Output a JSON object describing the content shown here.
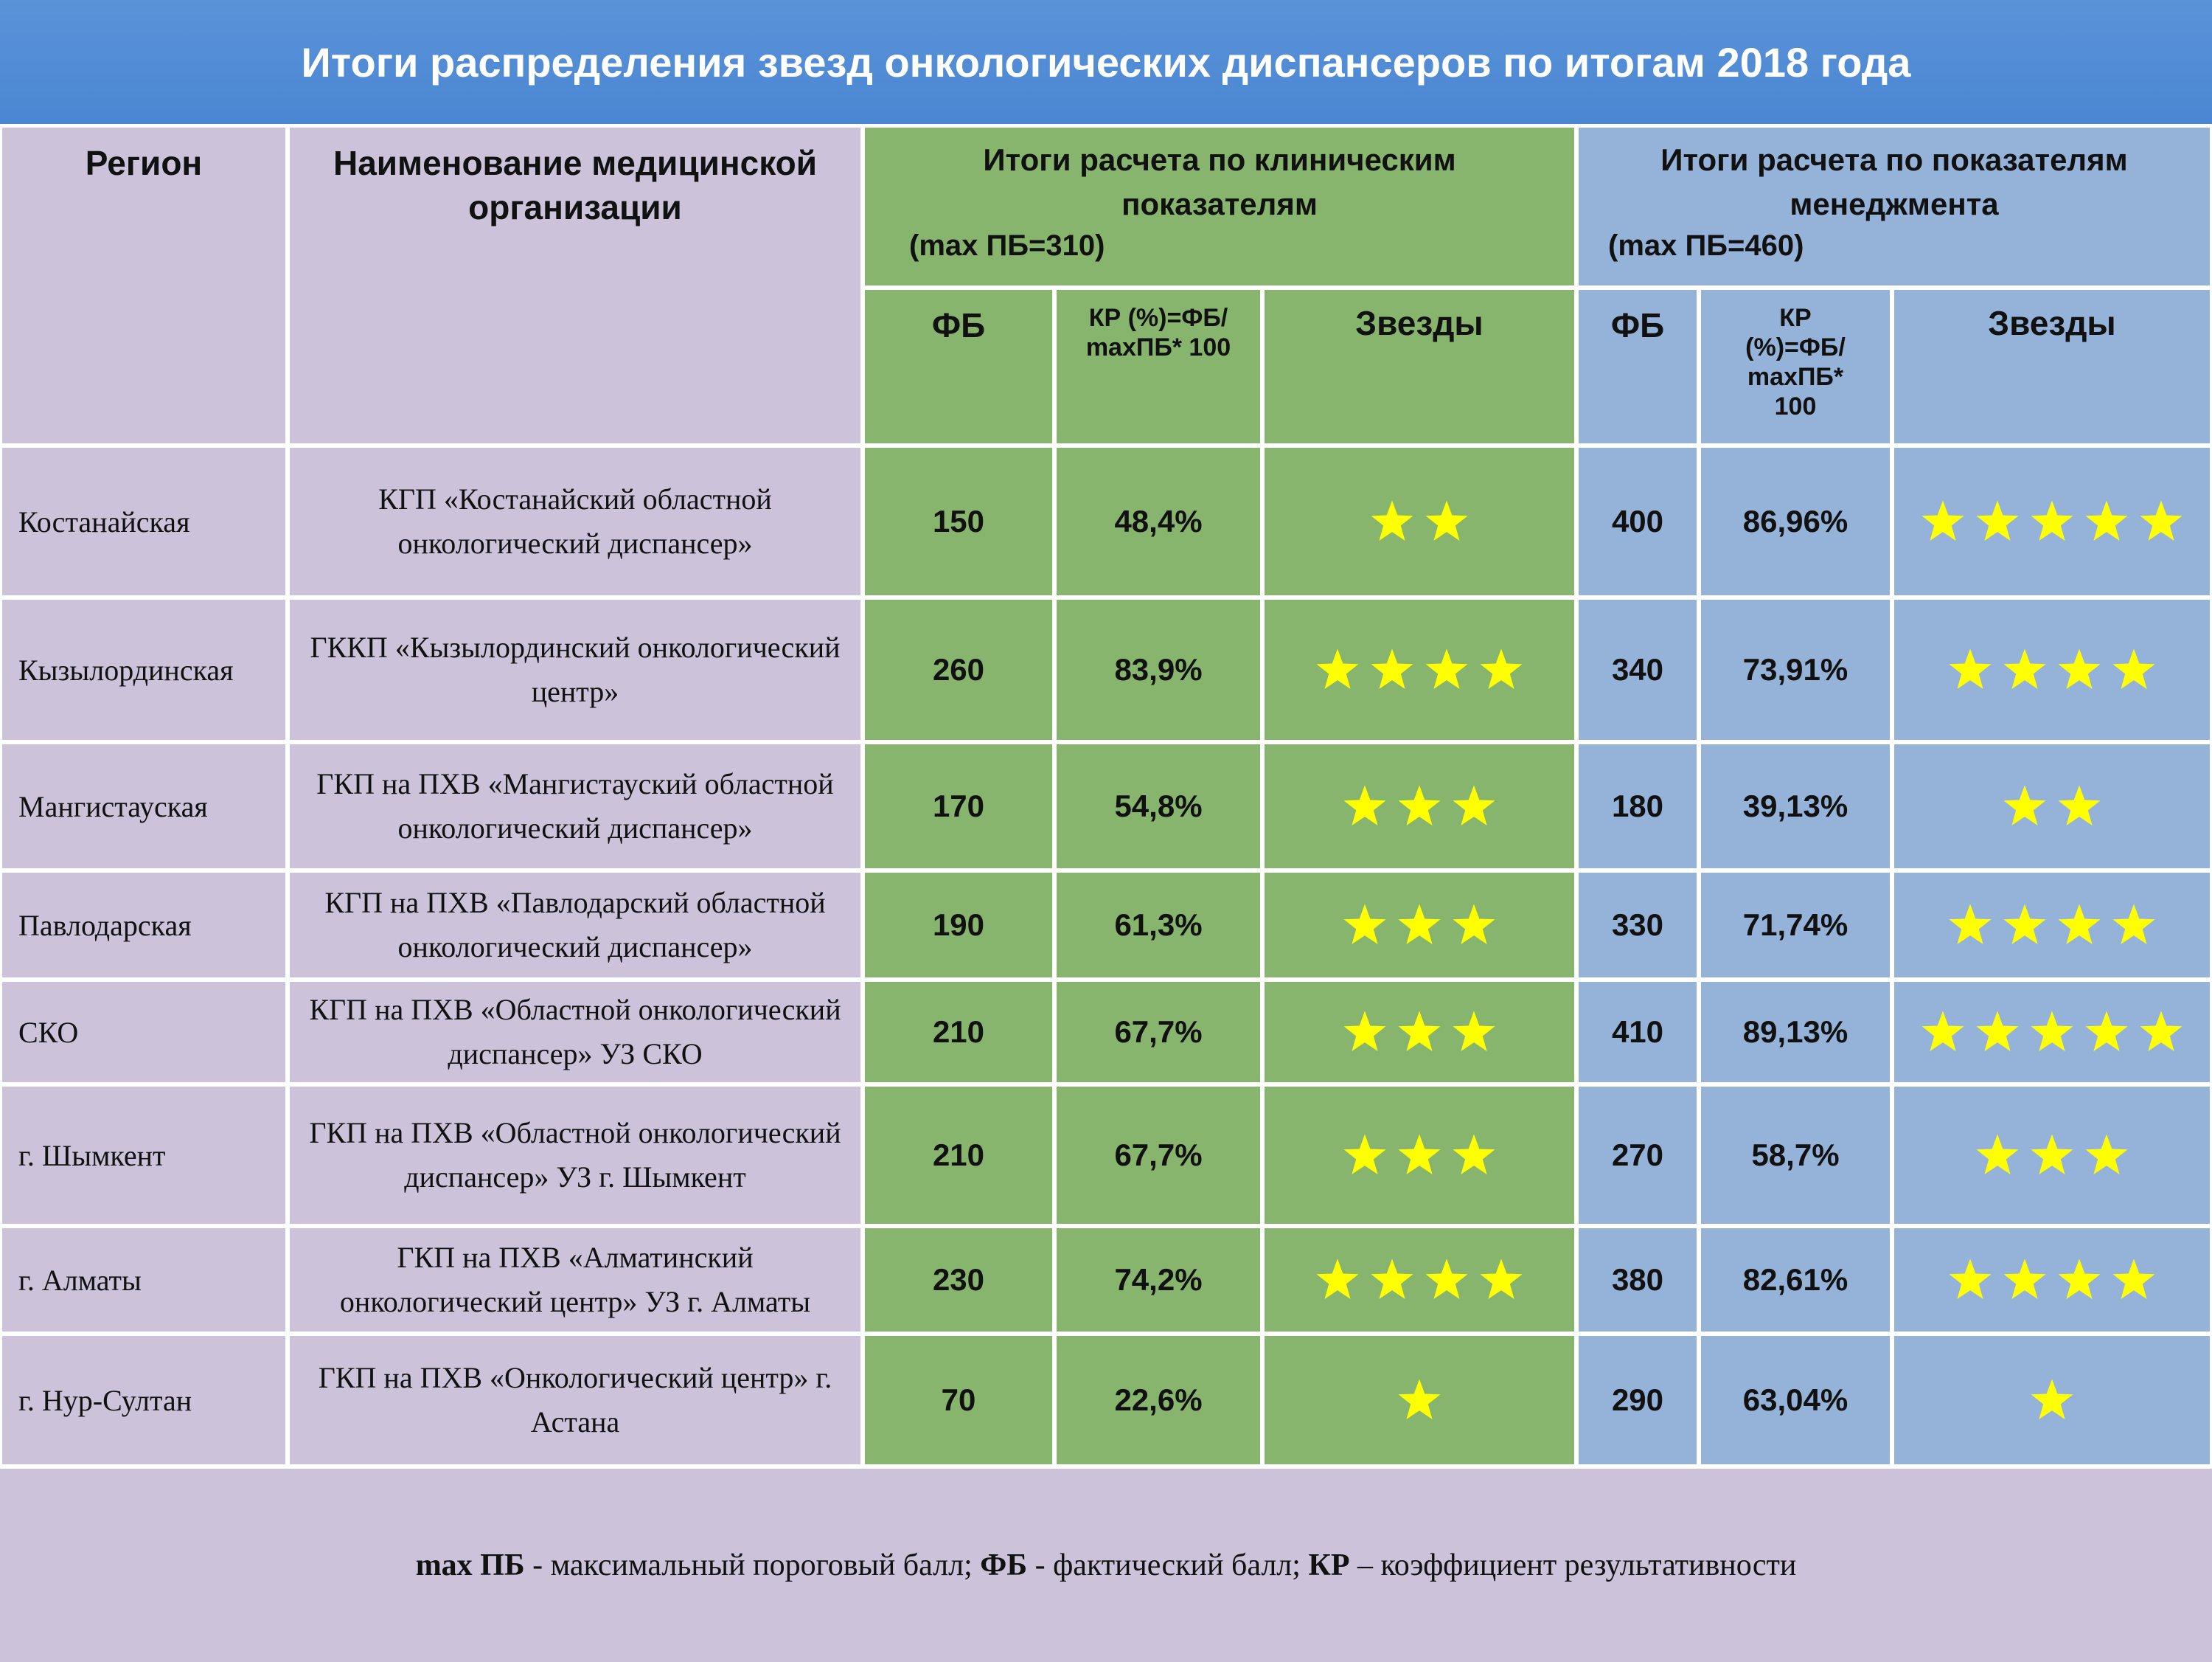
{
  "title": "Итоги распределения звезд онкологических диспансеров по итогам 2018 года",
  "header": {
    "region": "Регион",
    "organization": "Наименование медицинской организации",
    "clinical": {
      "title": "Итоги расчета по клиническим показателям",
      "max": "(max ПБ=310)",
      "fb": "ФБ",
      "kr": "КР (%)=ФБ/ maxПБ* 100",
      "stars": "Звезды"
    },
    "management": {
      "title": "Итоги расчета по показателям менеджмента",
      "max": "(max ПБ=460)",
      "fb": "ФБ",
      "kr": "КР (%)=ФБ/ maxПБ* 100",
      "stars": "Звезды"
    }
  },
  "rows": [
    {
      "region": "Костанайская",
      "org": "КГП «Костанайский областной онкологический диспансер»",
      "c_fb": "150",
      "c_kr": "48,4%",
      "c_stars": 2,
      "m_fb": "400",
      "m_kr": "86,96%",
      "m_stars": 5
    },
    {
      "region": "Кызылординская",
      "org": "ГККП «Кызылординский онкологический центр»",
      "c_fb": "260",
      "c_kr": "83,9%",
      "c_stars": 4,
      "m_fb": "340",
      "m_kr": "73,91%",
      "m_stars": 4
    },
    {
      "region": "Мангистауская",
      "org": "ГКП на ПХВ «Мангистауский областной онкологический диспансер»",
      "c_fb": "170",
      "c_kr": "54,8%",
      "c_stars": 3,
      "m_fb": "180",
      "m_kr": "39,13%",
      "m_stars": 2
    },
    {
      "region": "Павлодарская",
      "org": "КГП на ПХВ «Павлодарский областной онкологический диспансер»",
      "c_fb": "190",
      "c_kr": "61,3%",
      "c_stars": 3,
      "m_fb": "330",
      "m_kr": "71,74%",
      "m_stars": 4
    },
    {
      "region": "СКО",
      "org": "КГП на ПХВ «Областной онкологический диспансер» УЗ СКО",
      "c_fb": "210",
      "c_kr": "67,7%",
      "c_stars": 3,
      "m_fb": "410",
      "m_kr": "89,13%",
      "m_stars": 5
    },
    {
      "region": "г. Шымкент",
      "org": "ГКП на ПХВ «Областной онкологический диспансер» УЗ г. Шымкент",
      "c_fb": "210",
      "c_kr": "67,7%",
      "c_stars": 3,
      "m_fb": "270",
      "m_kr": "58,7%",
      "m_stars": 3
    },
    {
      "region": "г. Алматы",
      "org": "ГКП на ПХВ «Алматинский онкологический центр» УЗ г. Алматы",
      "c_fb": "230",
      "c_kr": "74,2%",
      "c_stars": 4,
      "m_fb": "380",
      "m_kr": "82,61%",
      "m_stars": 4
    },
    {
      "region": "г. Нур-Султан",
      "org": "ГКП на ПХВ «Онкологический центр» г. Астана",
      "c_fb": "70",
      "c_kr": "22,6%",
      "c_stars": 1,
      "m_fb": "290",
      "m_kr": "63,04%",
      "m_stars": 1
    }
  ],
  "footer": {
    "t1": "max ПБ",
    "t2": " - максимальный пороговый балл; ",
    "t3": "ФБ",
    "t4": " - фактический балл; ",
    "t5": "КР",
    "t6": " – коэффициент результативности"
  },
  "colors": {
    "banner": "#4a86d2",
    "lavender": "#ccc2da",
    "green": "#88b56d",
    "blue": "#95b3d9",
    "star": "#ffff00"
  }
}
